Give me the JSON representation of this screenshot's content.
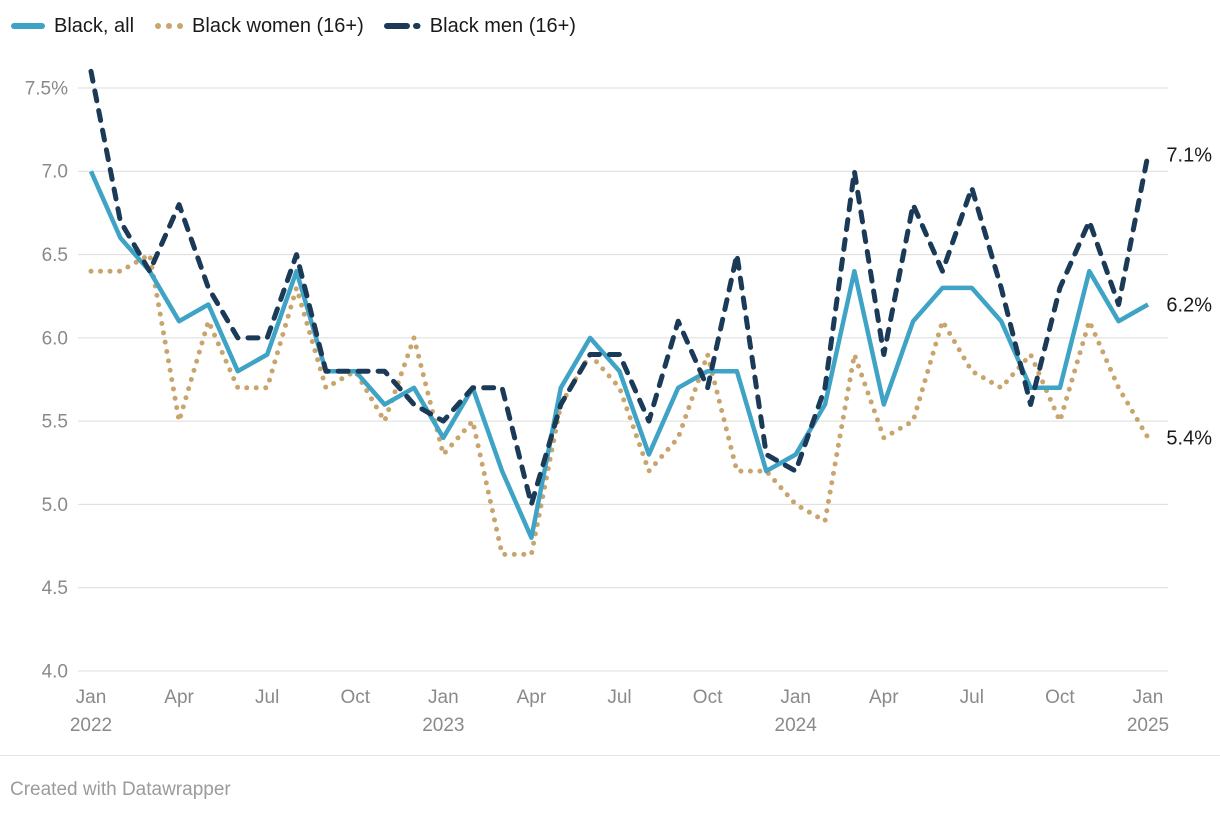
{
  "legend": {
    "items": [
      {
        "label": "Black, all"
      },
      {
        "label": "Black women (16+)"
      },
      {
        "label": "Black men (16+)"
      }
    ]
  },
  "chart_data": {
    "type": "line",
    "x": [
      "Jan 2022",
      "Feb 2022",
      "Mar 2022",
      "Apr 2022",
      "May 2022",
      "Jun 2022",
      "Jul 2022",
      "Aug 2022",
      "Sep 2022",
      "Oct 2022",
      "Nov 2022",
      "Dec 2022",
      "Jan 2023",
      "Feb 2023",
      "Mar 2023",
      "Apr 2023",
      "May 2023",
      "Jun 2023",
      "Jul 2023",
      "Aug 2023",
      "Sep 2023",
      "Oct 2023",
      "Nov 2023",
      "Dec 2023",
      "Jan 2024",
      "Feb 2024",
      "Mar 2024",
      "Apr 2024",
      "May 2024",
      "Jun 2024",
      "Jul 2024",
      "Aug 2024",
      "Sep 2024",
      "Oct 2024",
      "Nov 2024",
      "Dec 2024",
      "Jan 2025"
    ],
    "series": [
      {
        "name": "Black women (16+)",
        "color": "#c9a46c",
        "style": "dotted",
        "end_label": "5.4%",
        "values": [
          6.4,
          6.4,
          6.5,
          5.5,
          6.1,
          5.7,
          5.7,
          6.3,
          5.7,
          5.8,
          5.5,
          6.0,
          5.3,
          5.5,
          4.7,
          4.7,
          5.6,
          5.9,
          5.7,
          5.2,
          5.4,
          5.9,
          5.2,
          5.2,
          5.0,
          4.9,
          5.9,
          5.4,
          5.5,
          6.1,
          5.8,
          5.7,
          5.9,
          5.5,
          6.1,
          5.7,
          5.4
        ]
      },
      {
        "name": "Black, all",
        "color": "#3fa3c6",
        "style": "solid",
        "end_label": "6.2%",
        "values": [
          7.0,
          6.6,
          6.4,
          6.1,
          6.2,
          5.8,
          5.9,
          6.4,
          5.8,
          5.8,
          5.6,
          5.7,
          5.4,
          5.7,
          5.2,
          4.8,
          5.7,
          6.0,
          5.8,
          5.3,
          5.7,
          5.8,
          5.8,
          5.2,
          5.3,
          5.6,
          6.4,
          5.6,
          6.1,
          6.3,
          6.3,
          6.1,
          5.7,
          5.7,
          6.4,
          6.1,
          6.2
        ]
      },
      {
        "name": "Black men (16+)",
        "color": "#1b3a57",
        "style": "dashed",
        "end_label": "7.1%",
        "values": [
          7.6,
          6.7,
          6.4,
          6.8,
          6.3,
          6.0,
          6.0,
          6.5,
          5.8,
          5.8,
          5.8,
          5.6,
          5.5,
          5.7,
          5.7,
          5.0,
          5.6,
          5.9,
          5.9,
          5.5,
          6.1,
          5.7,
          6.5,
          5.3,
          5.2,
          5.7,
          7.0,
          5.9,
          6.8,
          6.4,
          6.9,
          6.3,
          5.6,
          6.3,
          6.7,
          6.2,
          7.1
        ]
      }
    ],
    "legend_order": [
      "Black, all",
      "Black women (16+)",
      "Black men (16+)"
    ],
    "y_axis": {
      "min": 4.0,
      "max": 7.5,
      "ticks": [
        {
          "value": 7.5,
          "label": "7.5%"
        },
        {
          "value": 7.0,
          "label": "7.0"
        },
        {
          "value": 6.5,
          "label": "6.5"
        },
        {
          "value": 6.0,
          "label": "6.0"
        },
        {
          "value": 5.5,
          "label": "5.5"
        },
        {
          "value": 5.0,
          "label": "5.0"
        },
        {
          "value": 4.5,
          "label": "4.5"
        },
        {
          "value": 4.0,
          "label": "4.0"
        }
      ]
    },
    "x_ticks": [
      {
        "index": 0,
        "label": "Jan",
        "year": "2022"
      },
      {
        "index": 3,
        "label": "Apr"
      },
      {
        "index": 6,
        "label": "Jul"
      },
      {
        "index": 9,
        "label": "Oct"
      },
      {
        "index": 12,
        "label": "Jan",
        "year": "2023"
      },
      {
        "index": 15,
        "label": "Apr"
      },
      {
        "index": 18,
        "label": "Jul"
      },
      {
        "index": 21,
        "label": "Oct"
      },
      {
        "index": 24,
        "label": "Jan",
        "year": "2024"
      },
      {
        "index": 27,
        "label": "Apr"
      },
      {
        "index": 30,
        "label": "Jul"
      },
      {
        "index": 33,
        "label": "Oct"
      },
      {
        "index": 36,
        "label": "Jan",
        "year": "2025"
      }
    ],
    "grid": true,
    "legend_position": "top-left",
    "colors": {
      "gridline": "#dcdcdc",
      "axis_label": "#8a8a8a",
      "end_label": "#1a1a1a",
      "legend_text": "#1a1a1a"
    }
  },
  "footer": {
    "credit": "Created with Datawrapper"
  }
}
